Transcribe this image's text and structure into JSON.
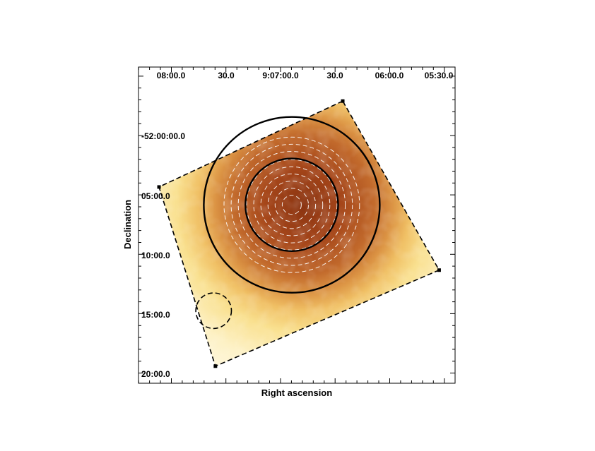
{
  "chart_data": {
    "type": "heatmap",
    "title": "",
    "xlabel": "Right ascension",
    "ylabel": "Declination",
    "x_tick_labels": [
      "08:00.0",
      "30.0",
      "9:07:00.0",
      "30.0",
      "06:00.0",
      "05:30.0"
    ],
    "y_tick_labels": [
      "-52:00:00.0",
      "05:00.0",
      "10:00.0",
      "15:00.0",
      "20:00.0"
    ],
    "ra_range": [
      "9:08:10",
      "9:05:25"
    ],
    "dec_range": [
      "-51:55:40",
      "-52:20:50"
    ],
    "colormap": "white-yellow-orange-brown (heat)",
    "colors": {
      "low": "#fffdf2",
      "mid": "#f4c460",
      "high": "#9a3a10",
      "ink": "#000000",
      "contour": "#ffffff"
    },
    "pointing_box": {
      "style": "dashed",
      "corners": [
        {
          "ra": "9:06:26",
          "dec": "-51:57:06"
        },
        {
          "ra": "9:08:07",
          "dec": "-52:04:20"
        },
        {
          "ra": "9:07:36",
          "dec": "-52:19:25"
        },
        {
          "ra": "9:05:33",
          "dec": "-52:11:20"
        }
      ]
    },
    "regions": [
      {
        "name": "outer circle",
        "style": "solid",
        "center": {
          "ra": "9:06:54",
          "dec": "-52:05:50"
        },
        "radius_arcmin": 7.4
      },
      {
        "name": "inner circle",
        "style": "solid",
        "center": {
          "ra": "9:06:54",
          "dec": "-52:05:50"
        },
        "radius_arcmin": 3.9
      },
      {
        "name": "background circle",
        "style": "dashed",
        "center": {
          "ra": "9:07:37",
          "dec": "-52:14:45"
        },
        "radius_arcmin": 1.5
      }
    ],
    "contour_rings_arcmin": [
      0.8,
      1.4,
      2.0,
      2.6,
      3.2,
      3.8,
      4.5,
      5.1,
      5.7
    ],
    "grid": false,
    "legend": "none"
  }
}
